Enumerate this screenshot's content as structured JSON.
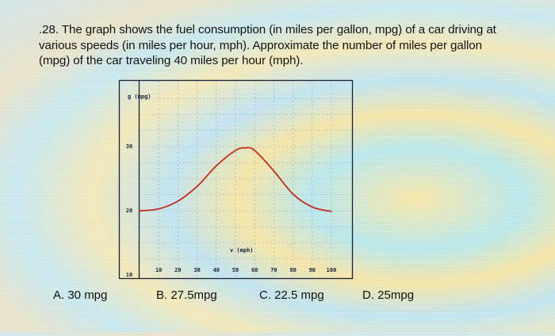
{
  "question": {
    "number": ".28.",
    "text": "The graph shows the fuel consumption (in miles per gallon, mpg) of a car driving at various speeds (in miles per hour, mph). Approximate the number of miles per gallon (mpg) of the car traveling 40 miles per hour (mph)."
  },
  "answers": [
    {
      "label": "A. 30 mpg"
    },
    {
      "label": "B. 27.5mpg"
    },
    {
      "label": "C. 22.5 mpg"
    },
    {
      "label": "D. 25mpg"
    }
  ],
  "chart_data": {
    "type": "line",
    "title": "",
    "xlabel": "v (mph)",
    "ylabel": "g (mpg)",
    "x_ticks": [
      10,
      20,
      30,
      40,
      50,
      60,
      70,
      80,
      90,
      100
    ],
    "y_ticks": [
      10,
      20,
      30
    ],
    "xlim": [
      0,
      110
    ],
    "ylim": [
      10,
      38
    ],
    "grid": true,
    "series": [
      {
        "name": "fuel consumption",
        "color": "#c0301c",
        "x": [
          0,
          10,
          20,
          30,
          40,
          50,
          55,
          60,
          70,
          80,
          90,
          100
        ],
        "y": [
          20,
          20.3,
          21.5,
          23.8,
          27,
          29.4,
          29.8,
          29.4,
          26.2,
          22.6,
          20.6,
          19.9
        ]
      }
    ]
  },
  "colors": {
    "curve": "#c0301c",
    "axis": "#1a1f3a",
    "grid": "#7a86a8"
  }
}
